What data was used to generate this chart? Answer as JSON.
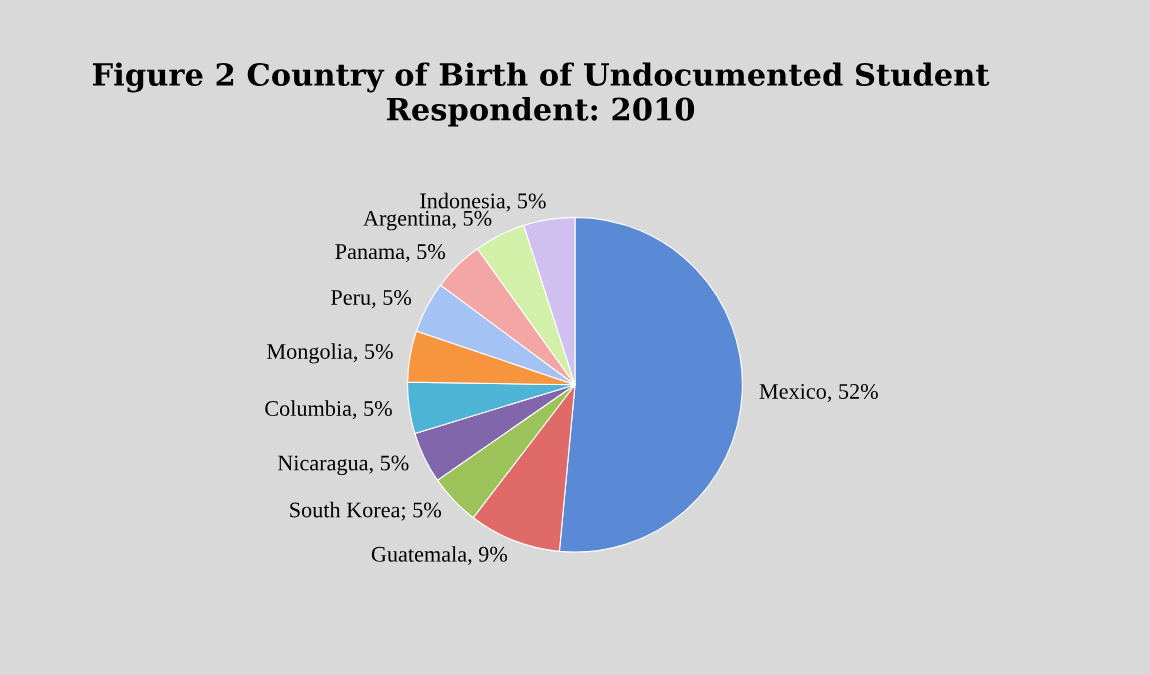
{
  "chart_data": {
    "type": "pie",
    "title": "Figure 2 Country of Birth of Undocumented Student Respondent: 2010",
    "categories": [
      "Mexico",
      "Guatemala",
      "South Korea",
      "Nicaragua",
      "Columbia",
      "Mongolia",
      "Peru",
      "Panama",
      "Argentina",
      "Indonesia"
    ],
    "values": [
      52,
      9,
      5,
      5,
      5,
      5,
      5,
      5,
      5,
      5
    ],
    "value_labels": [
      ", 52%",
      ", 9%",
      "; 5%",
      ", 5%",
      ", 5%",
      ", 5%",
      ", 5%",
      ", 5%",
      ", 5%",
      ", 5%"
    ],
    "colors": [
      "#5a8ad6",
      "#e06a68",
      "#9cc35a",
      "#8266ac",
      "#4db4d6",
      "#f7953f",
      "#a4c2f4",
      "#f4a6a4",
      "#d3f0a8",
      "#cfc0f0"
    ],
    "legend": false
  }
}
